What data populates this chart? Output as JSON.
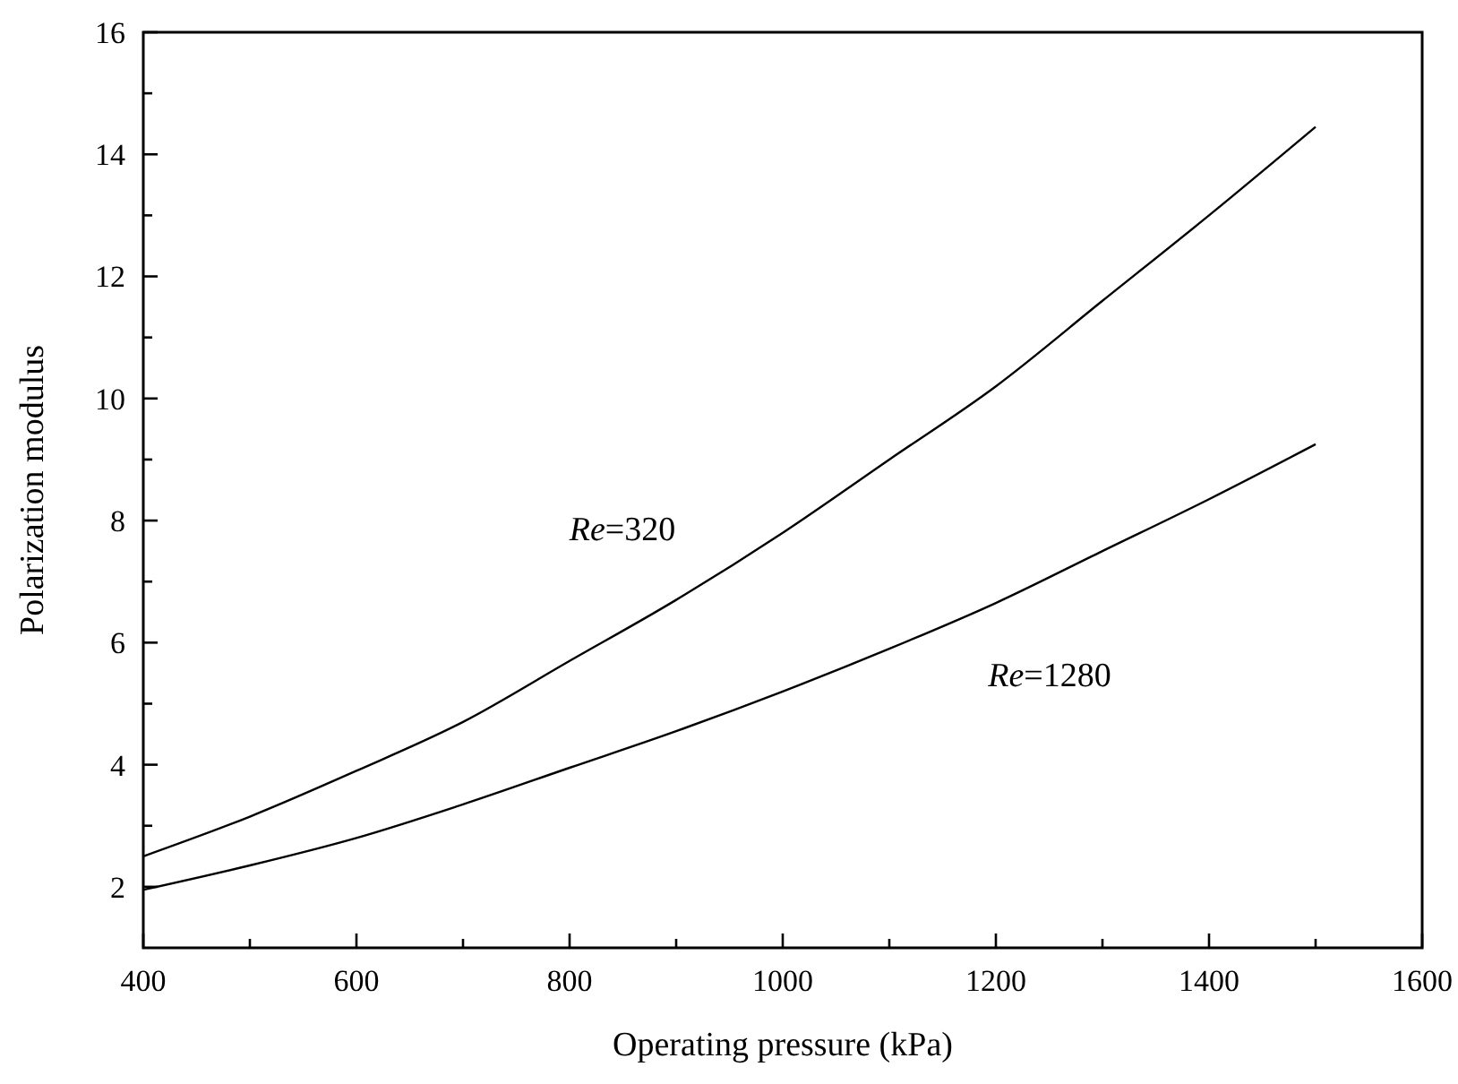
{
  "chart_data": {
    "type": "line",
    "xlabel": "Operating pressure (kPa)",
    "ylabel": "Polarization modulus",
    "x": [
      400,
      500,
      600,
      700,
      800,
      900,
      1000,
      1100,
      1200,
      1300,
      1400,
      1500
    ],
    "series": [
      {
        "name": "Re=320",
        "color": "#000000",
        "values": [
          2.5,
          3.15,
          3.9,
          4.7,
          5.7,
          6.7,
          7.8,
          9.0,
          10.2,
          11.6,
          13.0,
          14.45
        ]
      },
      {
        "name": "Re=1280",
        "color": "#000000",
        "values": [
          1.95,
          2.35,
          2.8,
          3.35,
          3.95,
          4.55,
          5.2,
          5.9,
          6.65,
          7.5,
          8.35,
          9.25
        ]
      }
    ],
    "xlim": [
      400,
      1600
    ],
    "ylim": [
      1,
      16
    ],
    "xticks": [
      400,
      {
        "value": 500,
        "label": null
      },
      600,
      {
        "value": 700,
        "label": null
      },
      800,
      {
        "value": 900,
        "label": null
      },
      1000,
      {
        "value": 1100,
        "label": null
      },
      1200,
      {
        "value": 1300,
        "label": null
      },
      1400,
      {
        "value": 1500,
        "label": null
      },
      1600
    ],
    "yticks": [
      2,
      {
        "value": 3,
        "label": null
      },
      4,
      {
        "value": 5,
        "label": null
      },
      6,
      {
        "value": 7,
        "label": null
      },
      8,
      {
        "value": 9,
        "label": null
      },
      10,
      {
        "value": 11,
        "label": null
      },
      12,
      {
        "value": 13,
        "label": null
      },
      14,
      {
        "value": 15,
        "label": null
      },
      16
    ],
    "grid": false,
    "marker": "none",
    "line_style": "solid"
  }
}
